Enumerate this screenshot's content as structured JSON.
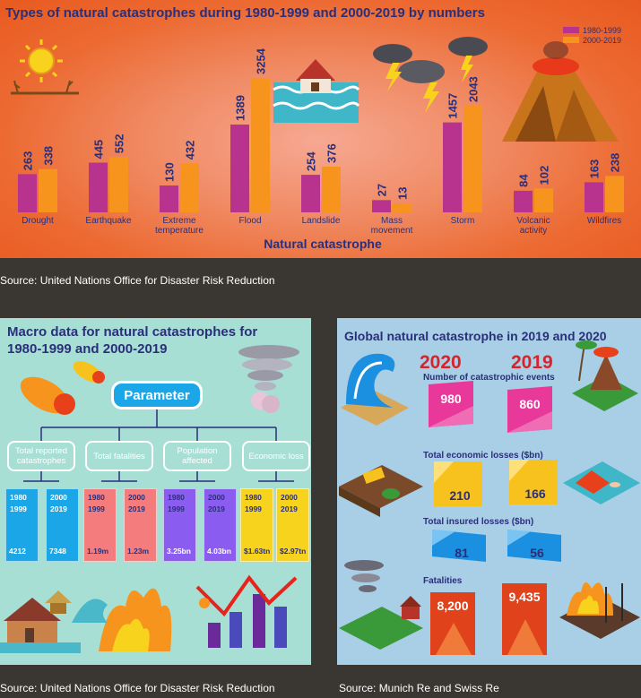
{
  "chart1": {
    "title": "Types of natural catastrophes during 1980-1999 and 2000-2019 by numbers",
    "xlabel": "Natural catastrophe",
    "legend": [
      "1980-1999",
      "2000-2019"
    ],
    "source": "Source: United Nations Office for Disaster Risk Reduction"
  },
  "chart_data": {
    "type": "bar",
    "categories": [
      "Drought",
      "Earthquake",
      "Extreme temperature",
      "Flood",
      "Landslide",
      "Mass movement",
      "Storm",
      "Volcanic activity",
      "Wildfires"
    ],
    "series": [
      {
        "name": "1980-1999",
        "values": [
          263,
          445,
          130,
          1389,
          254,
          27,
          1457,
          84,
          163
        ],
        "color": "#b8338e"
      },
      {
        "name": "2000-2019",
        "values": [
          338,
          552,
          432,
          3254,
          376,
          13,
          2043,
          102,
          238
        ],
        "color": "#f7941d"
      }
    ],
    "xlabel": "Natural catastrophe",
    "ylabel": "",
    "title": "Types of natural catastrophes during 1980-1999 and 2000-2019 by numbers"
  },
  "chart2": {
    "title": "Macro data for natural catastrophes for 1980-1999 and 2000-2019",
    "parameter": "Parameter",
    "categories": [
      {
        "label": "Total reported catastrophes",
        "color": "#1ba6e8",
        "v1980": "4212",
        "v2000": "7348"
      },
      {
        "label": "Total fatalities",
        "color": "#f47c7c",
        "v1980": "1.19m",
        "v2000": "1.23m"
      },
      {
        "label": "Population affected",
        "color": "#8a5cf0",
        "v1980": "3.25bn",
        "v2000": "4.03bn"
      },
      {
        "label": "Economic loss",
        "color": "#f7d31d",
        "v1980": "$1.63tn",
        "v2000": "$2.97tn"
      }
    ],
    "year1980": [
      "1980",
      "1999"
    ],
    "year2000": [
      "2000",
      "2019"
    ],
    "source": "Source: United Nations Office for Disaster Risk Reduction"
  },
  "chart3": {
    "title": "Global natural catastrophe in 2019 and 2020",
    "y2020": "2020",
    "y2019": "2019",
    "sections": [
      {
        "label": "Number of catastrophic events",
        "v2020": "980",
        "v2019": "860",
        "color": "#e8399a"
      },
      {
        "label": "Total economic losses ($bn)",
        "v2020": "210",
        "v2019": "166",
        "color": "#f7c21d"
      },
      {
        "label": "Total insured losses ($bn)",
        "v2020": "81",
        "v2019": "56",
        "color": "#1b8fe0"
      },
      {
        "label": "Fatalities",
        "v2020": "8,200",
        "v2019": "9,435",
        "color": "#e0421b"
      }
    ],
    "source": "Source: Munich Re and Swiss Re"
  }
}
